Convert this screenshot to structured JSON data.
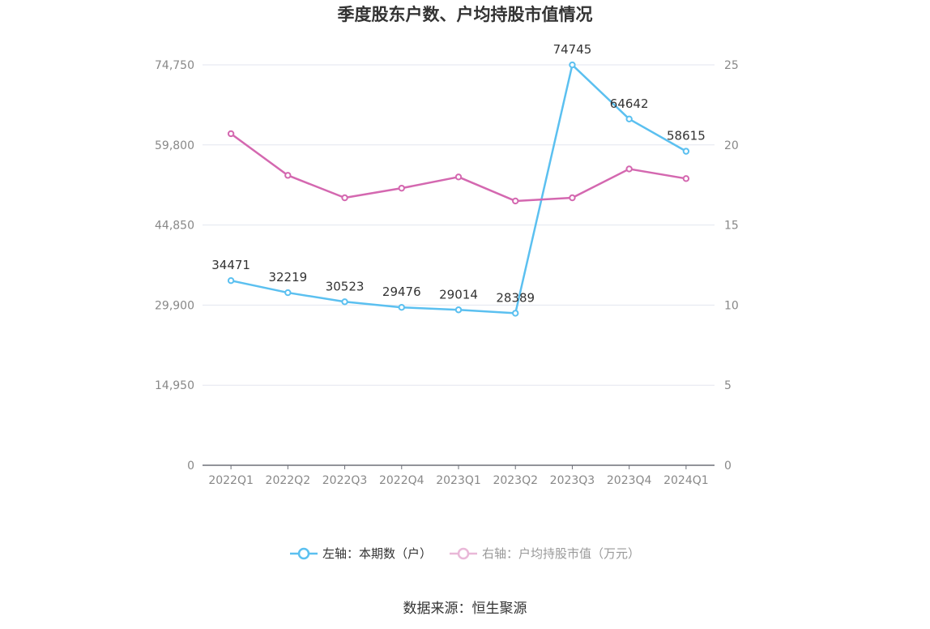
{
  "title": "季度股东户数、户均持股市值情况",
  "source": "数据来源：恒生聚源",
  "chart_data": {
    "type": "line",
    "categories": [
      "2022Q1",
      "2022Q2",
      "2022Q3",
      "2022Q4",
      "2023Q1",
      "2023Q2",
      "2023Q3",
      "2023Q4",
      "2024Q1"
    ],
    "left_axis": {
      "ylim": [
        0,
        74750
      ],
      "ticks": [
        "0",
        "14,950",
        "29,900",
        "44,850",
        "59,800",
        "74,750"
      ],
      "tick_values": [
        0,
        14950,
        29900,
        44850,
        59800,
        74750
      ]
    },
    "right_axis": {
      "ylim": [
        0,
        25
      ],
      "ticks": [
        "0",
        "5",
        "10",
        "15",
        "20",
        "25"
      ],
      "tick_values": [
        0,
        5,
        10,
        15,
        20,
        25
      ]
    },
    "series": [
      {
        "name": "左轴：本期数（户）",
        "axis": "left",
        "color": "#5bc0f0",
        "values": [
          34471,
          32219,
          30523,
          29476,
          29014,
          28389,
          74745,
          64642,
          58615
        ],
        "labels": [
          "34471",
          "32219",
          "30523",
          "29476",
          "29014",
          "28389",
          "74745",
          "64642",
          "58615"
        ]
      },
      {
        "name": "右轴：户均持股市值（万元）",
        "axis": "right",
        "color": "#d468b0",
        "values": [
          20.7,
          18.1,
          16.7,
          17.3,
          18.0,
          16.5,
          16.7,
          18.5,
          17.9
        ]
      }
    ],
    "grid": true,
    "legend": "bottom"
  }
}
